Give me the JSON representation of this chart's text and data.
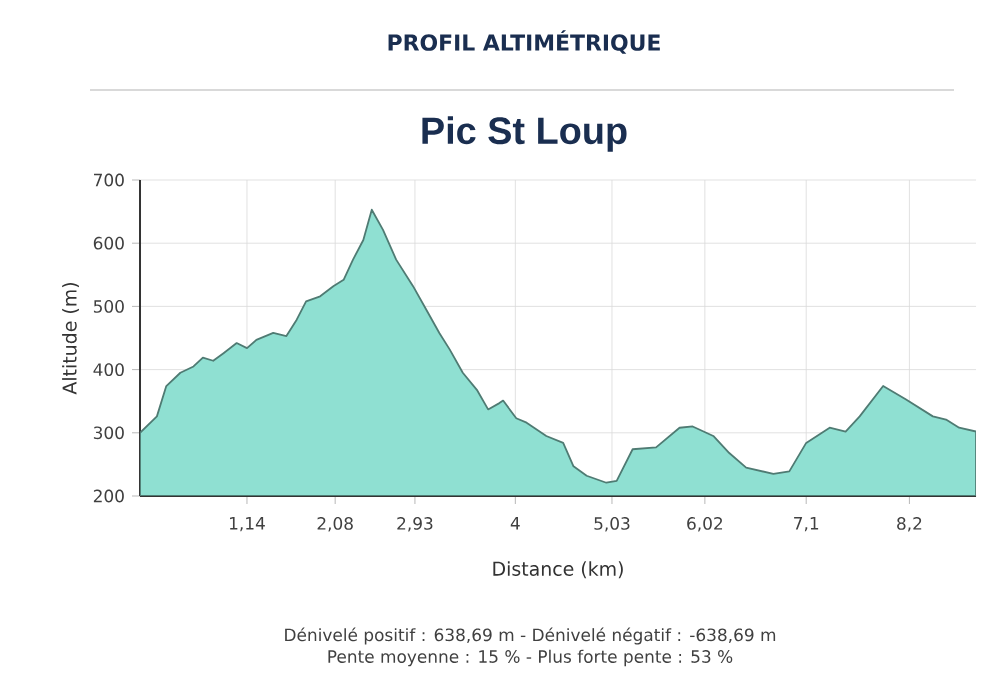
{
  "chart_data": {
    "type": "area",
    "title": "PROFIL ALTIMÉTRIQUE",
    "subtitle": "Pic St Loup",
    "xlabel": "Distance (km)",
    "ylabel": "Altitude (m)",
    "x": [
      0,
      0.18,
      0.28,
      0.43,
      0.57,
      0.67,
      0.78,
      0.89,
      1.03,
      1.14,
      1.24,
      1.42,
      1.56,
      1.67,
      1.77,
      1.92,
      2.06,
      2.17,
      2.27,
      2.38,
      2.47,
      2.59,
      2.73,
      2.91,
      3.05,
      3.19,
      3.3,
      3.44,
      3.59,
      3.71,
      3.83,
      3.87,
      4.01,
      4.12,
      4.33,
      4.51,
      4.62,
      4.76,
      4.97,
      5.08,
      5.25,
      5.5,
      5.75,
      5.89,
      6.11,
      6.28,
      6.46,
      6.75,
      6.92,
      7.1,
      7.35,
      7.52,
      7.67,
      7.92,
      8.16,
      8.45,
      8.59,
      8.73,
      8.91
    ],
    "values": [
      300,
      326,
      374,
      395,
      405,
      419,
      414,
      426,
      442,
      434,
      447,
      458,
      453,
      479,
      508,
      516,
      532,
      542,
      574,
      605,
      653,
      621,
      574,
      532,
      495,
      458,
      432,
      395,
      368,
      337,
      347,
      351,
      323,
      316,
      295,
      284,
      247,
      232,
      221,
      224,
      274,
      277,
      308,
      310,
      295,
      268,
      245,
      235,
      239,
      284,
      308,
      302,
      326,
      374,
      353,
      326,
      321,
      308,
      302
    ],
    "color": "#8fe0d2",
    "xlim": [
      0,
      8.91
    ],
    "ylim": [
      200,
      700
    ],
    "yticks": [
      200,
      300,
      400,
      500,
      600,
      700
    ],
    "xticks": [
      {
        "value": 1.14,
        "label": "1,14"
      },
      {
        "value": 2.08,
        "label": "2,08"
      },
      {
        "value": 2.93,
        "label": "2,93"
      },
      {
        "value": 4,
        "label": "4"
      },
      {
        "value": 5.03,
        "label": "5,03"
      },
      {
        "value": 6.02,
        "label": "6,02"
      },
      {
        "value": 7.1,
        "label": "7,1"
      },
      {
        "value": 8.2,
        "label": "8,2"
      }
    ],
    "grid": true,
    "annotations": [
      "Dénivelé positif : 638,69 m - Dénivelé négatif : -638,69 m",
      "Pente moyenne : 15 % - Plus forte pente : 53 %"
    ]
  }
}
